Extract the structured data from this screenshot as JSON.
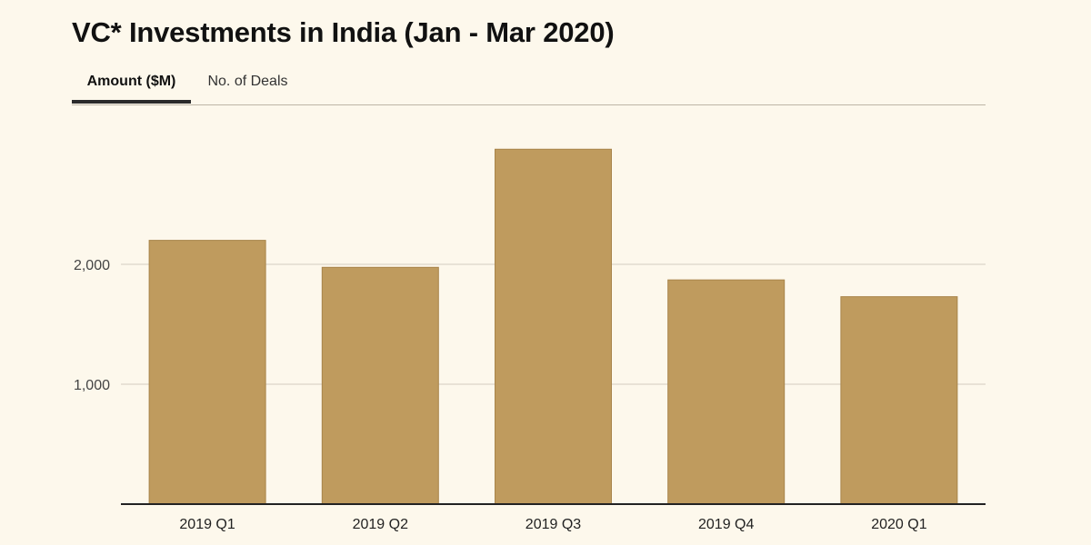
{
  "title": "VC* Investments in India (Jan - Mar 2020)",
  "tabs": [
    {
      "label": "Amount ($M)",
      "active": true
    },
    {
      "label": "No. of Deals",
      "active": false
    }
  ],
  "colors": {
    "bar": "#bf9b5e",
    "bar_stroke": "#a8844a",
    "grid": "#d3cdc0",
    "axis": "#222222",
    "text": "#333333"
  },
  "chart_data": {
    "type": "bar",
    "title": "",
    "xlabel": "",
    "ylabel": "",
    "categories": [
      "2019 Q1",
      "2019 Q2",
      "2019 Q3",
      "2019 Q4",
      "2020 Q1"
    ],
    "values": [
      2200,
      1975,
      2960,
      1870,
      1730
    ],
    "ylim": [
      0,
      3200
    ],
    "yticks": [
      1000,
      2000
    ],
    "ytick_labels": [
      "1,000",
      "2,000"
    ],
    "grid": true,
    "legend": "none"
  }
}
